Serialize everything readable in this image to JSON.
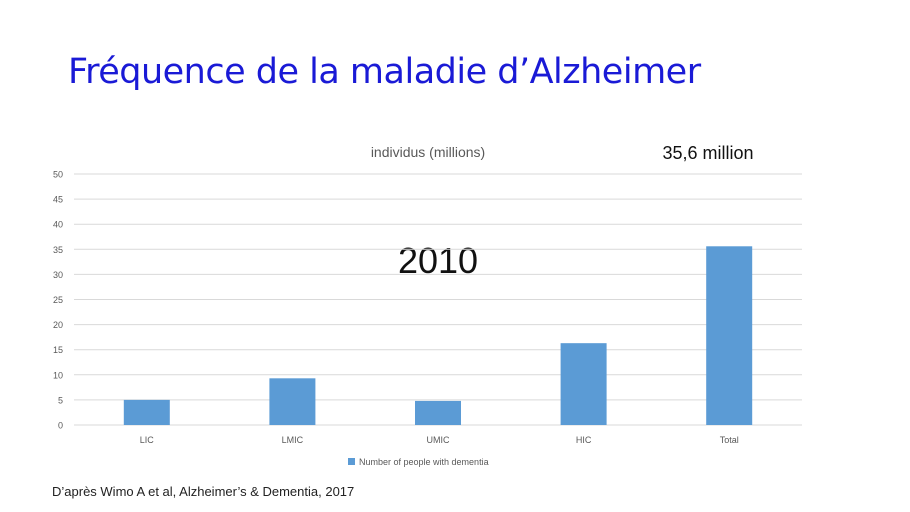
{
  "slide": {
    "title": "Fréquence de la maladie d’Alzheimer",
    "source": "D’après Wimo A et al, Alzheimer’s & Dementia, 2017"
  },
  "chart_data": {
    "type": "bar",
    "title": "individus (millions)",
    "xlabel": "",
    "ylabel": "",
    "categories": [
      "LIC",
      "LMIC",
      "UMIC",
      "HIC",
      "Total"
    ],
    "series": [
      {
        "name": "Number of people with dementia",
        "values": [
          5.0,
          9.3,
          4.8,
          16.3,
          35.6
        ]
      }
    ],
    "ylim": [
      0,
      50
    ],
    "yticks": [
      0,
      5,
      10,
      15,
      20,
      25,
      30,
      35,
      40,
      45,
      50
    ],
    "grid": true,
    "legend": "bottom-center",
    "annotations": [
      "2010",
      "35,6 million"
    ],
    "colors": {
      "bar": "#5b9bd5",
      "grid": "#d9d9d9",
      "axis_text": "#595959"
    }
  }
}
